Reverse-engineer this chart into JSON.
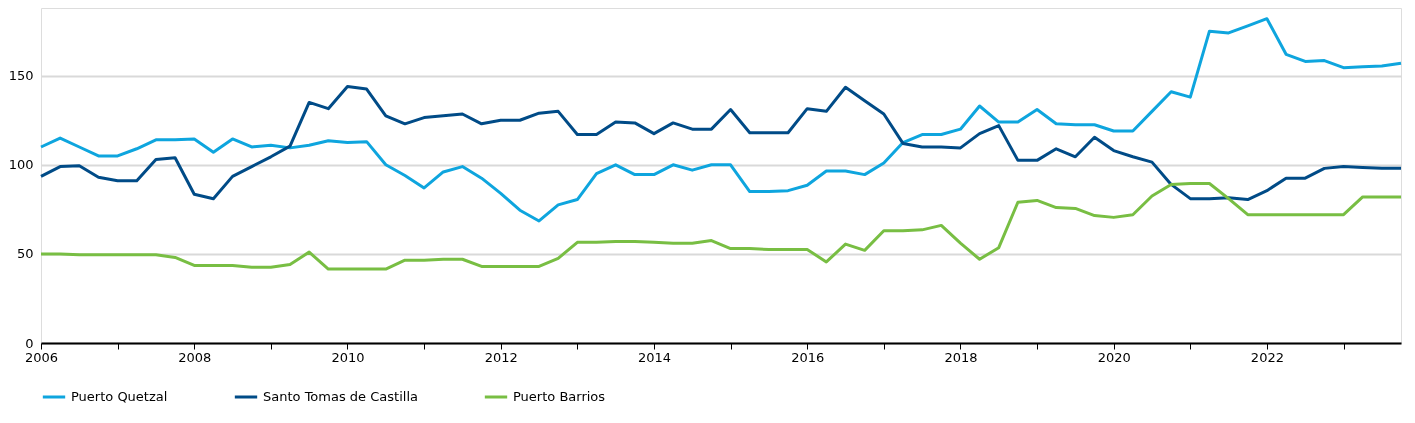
{
  "chart_data": {
    "type": "line",
    "x": [
      2006,
      2006.25,
      2006.5,
      2006.75,
      2007,
      2007.25,
      2007.5,
      2007.75,
      2008,
      2008.25,
      2008.5,
      2008.75,
      2009,
      2009.25,
      2009.5,
      2009.75,
      2010,
      2010.25,
      2010.5,
      2010.75,
      2011,
      2011.25,
      2011.5,
      2011.75,
      2012,
      2012.25,
      2012.5,
      2012.75,
      2013,
      2013.25,
      2013.5,
      2013.75,
      2014,
      2014.25,
      2014.5,
      2014.75,
      2015,
      2015.25,
      2015.5,
      2015.75,
      2016,
      2016.25,
      2016.5,
      2016.75,
      2017,
      2017.25,
      2017.5,
      2017.75,
      2018,
      2018.25,
      2018.5,
      2018.75,
      2019,
      2019.25,
      2019.5,
      2019.75,
      2020,
      2020.25,
      2020.5,
      2020.75,
      2021,
      2021.25,
      2021.5,
      2021.75,
      2022,
      2022.25,
      2022.5,
      2022.75,
      2023,
      2023.25,
      2023.5,
      2023.75
    ],
    "series": [
      {
        "name": "Puerto Quetzal",
        "color": "#0ea5de",
        "values": [
          110,
          115,
          110,
          105,
          105,
          109,
          114,
          114,
          114.5,
          107,
          114.5,
          110,
          111,
          109.5,
          111,
          113.5,
          112.5,
          113,
          100,
          94,
          87,
          96,
          99,
          92.5,
          84,
          74.5,
          68.5,
          77.5,
          80.5,
          95,
          100,
          94.5,
          94.5,
          100,
          97,
          100,
          100,
          85,
          85,
          85.5,
          88.5,
          96.5,
          96.5,
          94.5,
          101,
          112.5,
          117,
          117,
          120,
          133,
          124,
          124,
          131,
          123,
          122.5,
          122.5,
          119,
          119,
          130,
          141,
          138,
          175,
          174,
          178,
          182,
          162,
          158,
          158.5,
          154.5,
          155,
          155.5,
          157
        ]
      },
      {
        "name": "Santo Tomas de Castilla",
        "color": "#004b87",
        "values": [
          93.5,
          99,
          99.5,
          93,
          91,
          91,
          103,
          104,
          83.5,
          81,
          93.5,
          99,
          104.5,
          110.5,
          135,
          131.5,
          144,
          142.5,
          127.5,
          123,
          126.5,
          127.5,
          128.5,
          123,
          125,
          125,
          129,
          130,
          117,
          117,
          124,
          123.5,
          117.5,
          123.5,
          120,
          120,
          131,
          118,
          118,
          118,
          131.5,
          130,
          143.5,
          136,
          128.5,
          112,
          110,
          110,
          109.5,
          117.5,
          122,
          102.5,
          102.5,
          109,
          104.5,
          115.5,
          108,
          104.5,
          101.5,
          89,
          81,
          81,
          81.5,
          80.5,
          85.5,
          92.5,
          92.5,
          98,
          99,
          98.5,
          98,
          98
        ]
      },
      {
        "name": "Puerto Barrios",
        "color": "#78be43",
        "values": [
          50,
          50,
          49.5,
          49.5,
          49.5,
          49.5,
          49.5,
          48,
          43.5,
          43.5,
          43.5,
          42.5,
          42.5,
          44,
          51,
          41.5,
          41.5,
          41.5,
          41.5,
          46.5,
          46.5,
          47,
          47,
          43,
          43,
          43,
          43,
          47.5,
          56.5,
          56.5,
          57,
          57,
          56.5,
          56,
          56,
          57.5,
          53,
          53,
          52.5,
          52.5,
          52.5,
          45.5,
          55.5,
          52,
          63,
          63,
          63.5,
          66,
          56,
          47,
          53.5,
          79,
          80,
          76,
          75.5,
          71.5,
          70.5,
          72,
          82.5,
          89,
          89.5,
          89.5,
          81,
          72,
          72,
          72,
          72,
          72,
          72,
          82,
          82,
          82
        ]
      }
    ],
    "xlim": [
      2006,
      2023.75
    ],
    "xticks": [
      2006,
      {
        "value": 2007,
        "label": null
      },
      2008,
      {
        "value": 2009,
        "label": null
      },
      2010,
      {
        "value": 2011,
        "label": null
      },
      2012,
      {
        "value": 2013,
        "label": null
      },
      2014,
      {
        "value": 2015,
        "label": null
      },
      2016,
      {
        "value": 2017,
        "label": null
      },
      2018,
      {
        "value": 2019,
        "label": null
      },
      2020,
      {
        "value": 2021,
        "label": null
      },
      2022,
      {
        "value": 2023,
        "label": null
      }
    ],
    "ylim": [
      0,
      188
    ],
    "yticks": [
      0,
      50,
      100,
      150
    ],
    "grid": "y",
    "legend": "bottom",
    "line_style": "solid",
    "marker": "none"
  }
}
